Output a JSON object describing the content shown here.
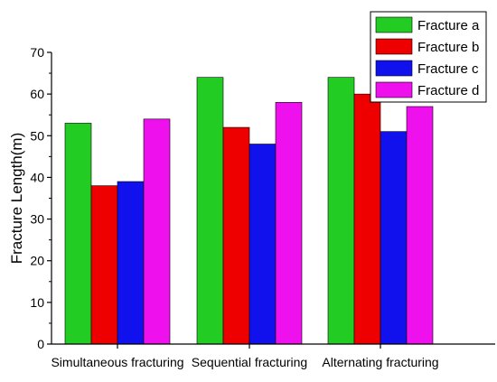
{
  "chart_data": {
    "type": "bar",
    "title": "",
    "xlabel": "",
    "ylabel": "Fracture Length(m)",
    "categories": [
      "Simultaneous fracturing",
      "Sequential fracturing",
      "Alternating fracturing"
    ],
    "series": [
      {
        "name": "Fracture a",
        "color": "#22cc22",
        "values": [
          53,
          64,
          64
        ]
      },
      {
        "name": "Fracture b",
        "color": "#ee0000",
        "values": [
          38,
          52,
          60
        ]
      },
      {
        "name": "Fracture c",
        "color": "#1111ee",
        "values": [
          39,
          48,
          51
        ]
      },
      {
        "name": "Fracture d",
        "color": "#ee11ee",
        "values": [
          54,
          58,
          57
        ]
      }
    ],
    "ylim": [
      0,
      70
    ],
    "yticks": [
      "0",
      "10",
      "20",
      "30",
      "40",
      "50",
      "60",
      "70"
    ],
    "grid": false,
    "legend": "top-right"
  }
}
